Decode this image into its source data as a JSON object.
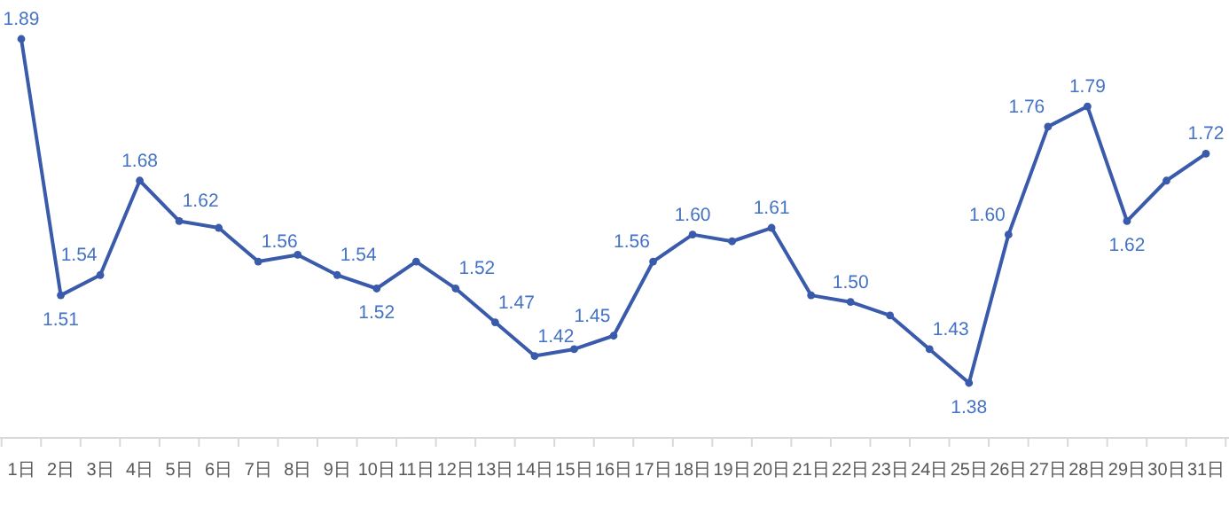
{
  "chart_data": {
    "type": "line",
    "categories": [
      "1日",
      "2日",
      "3日",
      "4日",
      "5日",
      "6日",
      "7日",
      "8日",
      "9日",
      "10日",
      "11日",
      "12日",
      "13日",
      "14日",
      "15日",
      "16日",
      "17日",
      "18日",
      "19日",
      "20日",
      "21日",
      "22日",
      "23日",
      "24日",
      "25日",
      "26日",
      "27日",
      "28日",
      "29日",
      "30日",
      "31日"
    ],
    "series": [
      {
        "color": "#3a5bab",
        "values": [
          1.89,
          1.51,
          1.54,
          1.68,
          1.62,
          1.61,
          1.56,
          1.57,
          1.54,
          1.52,
          1.56,
          1.52,
          1.47,
          1.42,
          1.43,
          1.45,
          1.56,
          1.6,
          1.59,
          1.61,
          1.51,
          1.5,
          1.48,
          1.43,
          1.38,
          1.6,
          1.76,
          1.79,
          1.62,
          1.68,
          1.72
        ],
        "value_labels": [
          "1.89",
          "1.51",
          "1.54",
          "1.68",
          "1.62",
          null,
          "1.56",
          null,
          "1.54",
          "1.52",
          null,
          "1.52",
          "1.47",
          "1.42",
          null,
          "1.45",
          "1.56",
          "1.60",
          null,
          "1.61",
          null,
          "1.50",
          null,
          "1.43",
          "1.38",
          "1.60",
          "1.76",
          "1.79",
          "1.62",
          null,
          "1.72"
        ]
      }
    ],
    "marker": "circle",
    "line_style": "solid"
  }
}
